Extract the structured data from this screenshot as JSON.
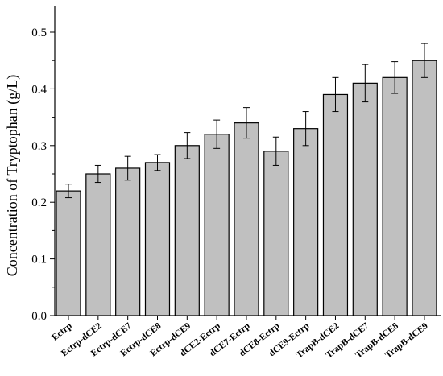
{
  "chart_data": {
    "type": "bar",
    "title": "",
    "xlabel": "",
    "ylabel": "Concentration of Tryptophan (g/L)",
    "ylim": [
      0.0,
      0.5
    ],
    "yticks": [
      0.0,
      0.1,
      0.2,
      0.3,
      0.4,
      0.5
    ],
    "ytick_labels": [
      "0.0",
      "0.1",
      "0.2",
      "0.3",
      "0.4",
      "0.5"
    ],
    "categories": [
      "Ectrp",
      "Ectrp-dCE2",
      "Ectrp-dCE7",
      "Ectrp-dCE8",
      "Ectrp-dCE9",
      "dCE2-Ectrp",
      "dCE7-Ectrp",
      "dCE8-Ectrp",
      "dCE9-Ectrp",
      "TrapB-dCE2",
      "TrapB-dCE7",
      "TrapB-dCE8",
      "TrapB-dCE9"
    ],
    "values": [
      0.22,
      0.25,
      0.26,
      0.27,
      0.3,
      0.32,
      0.34,
      0.29,
      0.33,
      0.39,
      0.41,
      0.42,
      0.45
    ],
    "errors": [
      0.012,
      0.015,
      0.021,
      0.014,
      0.023,
      0.025,
      0.027,
      0.025,
      0.03,
      0.03,
      0.033,
      0.028,
      0.03
    ],
    "grid": false,
    "legend": "none",
    "colors": {
      "bar_fill": "#c0c0c0",
      "bar_stroke": "#000000"
    }
  }
}
